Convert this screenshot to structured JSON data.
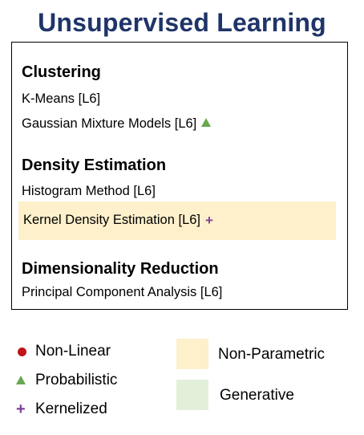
{
  "title": "Unsupervised Learning",
  "colors": {
    "title": "#1f3468",
    "non_linear": "#c0141b",
    "probabilistic": "#6aa84f",
    "kernelized": "#7e3f98",
    "non_parametric": "#fdf0cb",
    "generative": "#e2f0d9"
  },
  "sections": {
    "clustering": {
      "heading": "Clustering",
      "items": [
        {
          "label": "K-Means [L6]"
        },
        {
          "label": "Gaussian Mixture Models [L6]",
          "marker": "triangle-icon"
        }
      ]
    },
    "density": {
      "heading": "Density Estimation",
      "items": [
        {
          "label": "Histogram Method [L6]"
        },
        {
          "label": "Kernel Density Estimation [L6]",
          "marker": "plus-icon",
          "non_parametric": true
        }
      ]
    },
    "dimred": {
      "heading": "Dimensionality Reduction",
      "items": [
        {
          "label": "Principal Component Analysis [L6]"
        }
      ]
    }
  },
  "legend": {
    "non_linear": {
      "label": "Non-Linear",
      "icon": "circle-icon"
    },
    "probabilistic": {
      "label": "Probabilistic",
      "icon": "triangle-icon"
    },
    "kernelized": {
      "label": "Kernelized",
      "icon": "plus-icon",
      "symbol": "+"
    },
    "non_parametric": {
      "label": "Non-Parametric"
    },
    "generative": {
      "label": "Generative"
    }
  }
}
